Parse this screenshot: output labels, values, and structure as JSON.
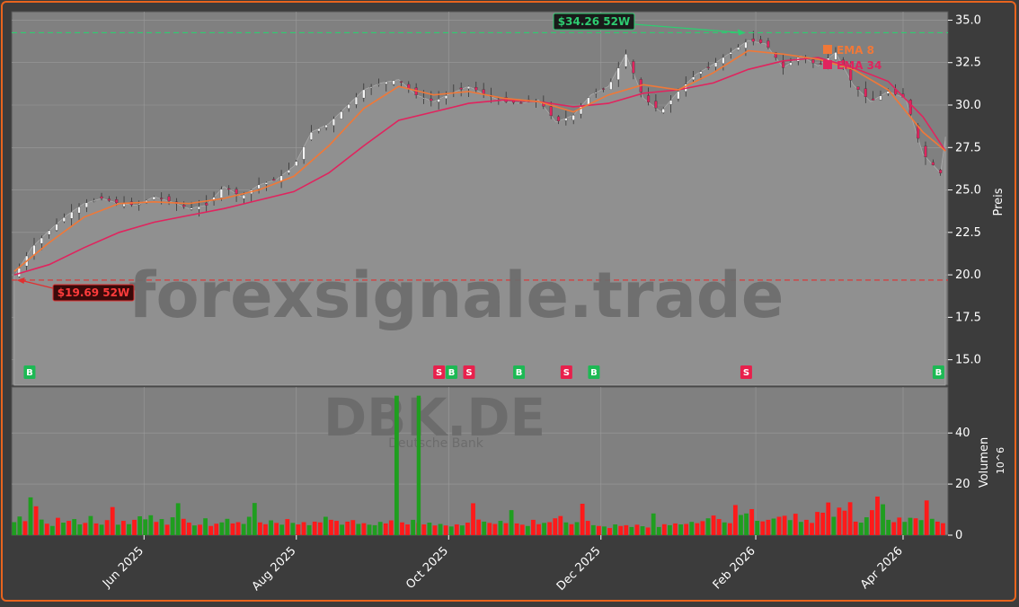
{
  "ticker": "DBK.DE",
  "company": "Deutsche Bank",
  "watermark": "forexsignale.trade",
  "colors": {
    "background": "#3c3c3c",
    "panel": "#808080",
    "frame": "#e8641e",
    "up": "#1f9e1f",
    "down": "#ff1a1a",
    "ema8": "#f07838",
    "ema34": "#e0245e",
    "high_line": "#2ecc71",
    "low_line": "#e03030",
    "buy": "#1db954",
    "sell": "#e8204c"
  },
  "chart_data": [
    {
      "type": "line",
      "panel": "price",
      "ylabel": "Preis",
      "ylim": [
        13.5,
        35.5
      ],
      "yticks": [
        15.0,
        17.5,
        20.0,
        22.5,
        25.0,
        27.5,
        30.0,
        32.5,
        35.0
      ],
      "ytick_labels": [
        "15.0",
        "17.5",
        "20.0",
        "22.5",
        "25.0",
        "27.5",
        "30.0",
        "32.5",
        "35.0"
      ],
      "x_range": [
        "2025-04-09",
        "2026-04-19"
      ],
      "x_ticks": [
        "2025-06-01",
        "2025-08-01",
        "2025-10-01",
        "2025-12-01",
        "2026-02-01",
        "2026-04-01"
      ],
      "x_tick_labels": [
        "Jun 2025",
        "Aug 2025",
        "Oct 2025",
        "Dec 2025",
        "Feb 2026",
        "Apr 2026"
      ],
      "grid": true,
      "legend_position": "top-right",
      "close_series": [
        [
          "2025-04-10",
          19.9
        ],
        [
          "2025-04-17",
          21.6
        ],
        [
          "2025-04-24",
          22.6
        ],
        [
          "2025-05-01",
          23.5
        ],
        [
          "2025-05-08",
          24.2
        ],
        [
          "2025-05-15",
          24.5
        ],
        [
          "2025-05-22",
          24.2
        ],
        [
          "2025-05-29",
          24.1
        ],
        [
          "2025-06-05",
          24.6
        ],
        [
          "2025-06-12",
          24.3
        ],
        [
          "2025-06-19",
          23.9
        ],
        [
          "2025-06-26",
          24.1
        ],
        [
          "2025-07-03",
          25.2
        ],
        [
          "2025-07-10",
          24.6
        ],
        [
          "2025-07-17",
          25.3
        ],
        [
          "2025-07-24",
          25.6
        ],
        [
          "2025-07-31",
          26.4
        ],
        [
          "2025-08-07",
          28.4
        ],
        [
          "2025-08-14",
          28.9
        ],
        [
          "2025-08-21",
          29.9
        ],
        [
          "2025-08-28",
          30.9
        ],
        [
          "2025-09-04",
          31.3
        ],
        [
          "2025-09-11",
          31.5
        ],
        [
          "2025-09-18",
          30.6
        ],
        [
          "2025-09-25",
          30.2
        ],
        [
          "2025-10-02",
          30.7
        ],
        [
          "2025-10-09",
          31.1
        ],
        [
          "2025-10-16",
          30.6
        ],
        [
          "2025-10-23",
          30.2
        ],
        [
          "2025-10-30",
          30.1
        ],
        [
          "2025-11-06",
          30.3
        ],
        [
          "2025-11-13",
          29.0
        ],
        [
          "2025-11-20",
          29.4
        ],
        [
          "2025-11-27",
          30.6
        ],
        [
          "2025-12-04",
          31.1
        ],
        [
          "2025-12-11",
          33.0
        ],
        [
          "2025-12-18",
          30.4
        ],
        [
          "2025-12-25",
          29.6
        ],
        [
          "2026-01-01",
          30.8
        ],
        [
          "2026-01-08",
          31.8
        ],
        [
          "2026-01-15",
          32.4
        ],
        [
          "2026-01-22",
          33.1
        ],
        [
          "2026-01-29",
          33.8
        ],
        [
          "2026-02-05",
          33.6
        ],
        [
          "2026-02-12",
          32.2
        ],
        [
          "2026-02-19",
          32.9
        ],
        [
          "2026-02-26",
          32.3
        ],
        [
          "2026-03-05",
          33.1
        ],
        [
          "2026-03-12",
          31.2
        ],
        [
          "2026-03-19",
          30.2
        ],
        [
          "2026-03-26",
          30.8
        ],
        [
          "2026-04-02",
          30.4
        ],
        [
          "2026-04-09",
          27.1
        ],
        [
          "2026-04-16",
          26.0
        ]
      ],
      "ema8": [
        [
          "2025-04-10",
          20.2
        ],
        [
          "2025-04-24",
          21.9
        ],
        [
          "2025-05-08",
          23.4
        ],
        [
          "2025-05-22",
          24.2
        ],
        [
          "2025-06-05",
          24.3
        ],
        [
          "2025-06-19",
          24.2
        ],
        [
          "2025-07-03",
          24.5
        ],
        [
          "2025-07-17",
          25.0
        ],
        [
          "2025-07-31",
          25.8
        ],
        [
          "2025-08-14",
          27.6
        ],
        [
          "2025-08-28",
          29.8
        ],
        [
          "2025-09-11",
          31.1
        ],
        [
          "2025-09-25",
          30.6
        ],
        [
          "2025-10-09",
          30.8
        ],
        [
          "2025-10-23",
          30.4
        ],
        [
          "2025-11-06",
          30.2
        ],
        [
          "2025-11-20",
          29.6
        ],
        [
          "2025-12-04",
          30.6
        ],
        [
          "2025-12-18",
          31.2
        ],
        [
          "2026-01-01",
          30.9
        ],
        [
          "2026-01-15",
          31.9
        ],
        [
          "2026-01-29",
          33.2
        ],
        [
          "2026-02-12",
          33.0
        ],
        [
          "2026-02-26",
          32.7
        ],
        [
          "2026-03-12",
          32.1
        ],
        [
          "2026-03-26",
          30.9
        ],
        [
          "2026-04-09",
          28.4
        ],
        [
          "2026-04-18",
          27.3
        ]
      ],
      "ema34": [
        [
          "2025-04-10",
          20.0
        ],
        [
          "2025-04-24",
          20.6
        ],
        [
          "2025-05-08",
          21.6
        ],
        [
          "2025-05-22",
          22.5
        ],
        [
          "2025-06-05",
          23.1
        ],
        [
          "2025-06-19",
          23.5
        ],
        [
          "2025-07-03",
          23.9
        ],
        [
          "2025-07-17",
          24.4
        ],
        [
          "2025-07-31",
          24.9
        ],
        [
          "2025-08-14",
          26.0
        ],
        [
          "2025-08-28",
          27.6
        ],
        [
          "2025-09-11",
          29.1
        ],
        [
          "2025-09-25",
          29.6
        ],
        [
          "2025-10-09",
          30.1
        ],
        [
          "2025-10-23",
          30.3
        ],
        [
          "2025-11-06",
          30.2
        ],
        [
          "2025-11-20",
          29.9
        ],
        [
          "2025-12-04",
          30.1
        ],
        [
          "2025-12-18",
          30.7
        ],
        [
          "2026-01-01",
          30.9
        ],
        [
          "2026-01-15",
          31.3
        ],
        [
          "2026-01-29",
          32.1
        ],
        [
          "2026-02-12",
          32.6
        ],
        [
          "2026-02-26",
          32.8
        ],
        [
          "2026-03-12",
          32.2
        ],
        [
          "2026-03-26",
          31.4
        ],
        [
          "2026-04-09",
          29.3
        ],
        [
          "2026-04-18",
          27.3
        ]
      ],
      "legend": [
        {
          "name": "EMA 8",
          "color": "#f07838"
        },
        {
          "name": "EMA 34",
          "color": "#e0245e"
        }
      ],
      "reference_lines": [
        {
          "label": "$34.26 52W",
          "value": 34.26,
          "date": "2026-01-28",
          "kind": "high"
        },
        {
          "label": "$19.69 52W",
          "value": 19.69,
          "date": "2025-04-11",
          "kind": "low"
        }
      ],
      "signals": [
        {
          "date": "2025-04-16",
          "label": "B"
        },
        {
          "date": "2025-09-27",
          "label": "S"
        },
        {
          "date": "2025-10-02",
          "label": "B"
        },
        {
          "date": "2025-10-09",
          "label": "S"
        },
        {
          "date": "2025-10-29",
          "label": "B"
        },
        {
          "date": "2025-11-17",
          "label": "S"
        },
        {
          "date": "2025-11-28",
          "label": "B"
        },
        {
          "date": "2026-01-28",
          "label": "S"
        },
        {
          "date": "2026-04-15",
          "label": "B"
        }
      ],
      "last_value": 28.1
    },
    {
      "type": "bar",
      "panel": "volume",
      "ylabel": "Volumen",
      "unit": "10^6",
      "ylim": [
        0,
        58
      ],
      "yticks": [
        0,
        20,
        40
      ],
      "ytick_labels": [
        "0",
        "20",
        "40"
      ],
      "spike": {
        "date": "2025-09-19",
        "value": 54.6
      },
      "volumes": [
        5.1,
        7.3,
        5.5,
        14.8,
        11.3,
        6.1,
        4.5,
        3.6,
        6.8,
        4.9,
        5.6,
        6.3,
        4.2,
        4.8,
        7.5,
        4.6,
        4.1,
        5.9,
        11.0,
        4.1,
        5.6,
        4.3,
        6.0,
        7.4,
        6.2,
        7.8,
        5.2,
        6.3,
        4.1,
        7.0,
        12.5,
        6.4,
        4.9,
        3.8,
        4.1,
        6.6,
        3.6,
        4.5,
        5.0,
        6.4,
        4.6,
        5.1,
        4.4,
        7.2,
        12.6,
        5.0,
        4.3,
        5.8,
        4.8,
        4.1,
        6.3,
        4.8,
        4.2,
        5.1,
        3.9,
        5.3,
        5.0,
        7.2,
        6.0,
        5.6,
        4.1,
        5.3,
        5.9,
        4.4,
        4.7,
        4.1,
        3.9,
        5.2,
        4.6,
        5.8,
        54.6,
        5.0,
        4.2,
        6.0,
        4.8,
        4.2,
        4.9,
        3.8,
        4.4,
        3.8,
        3.4,
        4.2,
        3.8,
        4.9,
        12.5,
        6.1,
        5.3,
        4.8,
        4.4,
        5.6,
        4.7,
        9.8,
        4.6,
        4.1,
        3.6,
        6.0,
        4.3,
        4.8,
        5.1,
        6.6,
        7.5,
        5.0,
        4.3,
        5.1,
        12.3,
        5.6,
        3.9,
        3.6,
        3.4,
        2.8,
        4.2,
        3.6,
        3.9,
        3.2,
        4.1,
        3.5,
        3.0,
        8.5,
        3.2,
        4.3,
        3.9,
        4.6,
        4.2,
        4.4,
        5.2,
        4.7,
        5.5,
        6.6,
        7.7,
        6.3,
        5.0,
        4.7,
        11.8,
        7.9,
        8.5,
        10.2,
        5.6,
        5.4,
        6.0,
        6.5,
        7.2,
        7.6,
        5.9,
        8.4,
        5.2,
        6.0,
        4.8,
        9.1,
        8.8,
        12.8,
        7.2,
        10.8,
        9.6,
        12.9,
        5.3,
        4.9,
        7.0,
        9.8,
        15.1,
        12.1,
        6.0,
        5.1,
        6.9,
        5.2,
        6.8,
        6.6,
        5.9,
        13.6,
        6.4,
        5.3,
        4.7
      ],
      "volume_up": [
        1,
        1,
        0,
        1,
        0,
        1,
        0,
        1,
        0,
        1,
        0,
        1,
        1,
        0,
        1,
        0,
        1,
        0,
        0,
        1,
        0,
        1,
        0,
        1,
        1,
        1,
        0,
        1,
        0,
        1,
        1,
        0,
        0,
        1,
        0,
        1,
        0,
        0,
        1,
        1,
        0,
        0,
        1,
        1,
        1,
        0,
        0,
        1,
        0,
        1,
        0,
        1,
        0,
        0,
        1,
        0,
        0,
        1,
        0,
        0,
        1,
        0,
        0,
        1,
        0,
        1,
        1,
        1,
        0,
        0,
        1,
        0,
        0,
        1,
        0,
        0,
        1,
        0,
        1,
        0,
        1,
        0,
        1,
        0,
        0,
        0,
        1,
        0,
        0,
        1,
        0,
        1,
        0,
        0,
        1,
        0,
        0,
        1,
        0,
        0,
        0,
        1,
        0,
        1,
        0,
        0,
        1,
        0,
        1,
        0,
        1,
        0,
        0,
        1,
        0,
        1,
        0,
        1,
        1,
        0,
        1,
        0,
        1,
        0,
        1,
        0,
        0,
        1,
        0,
        0,
        1,
        0,
        0,
        1,
        1,
        0,
        1,
        0,
        0,
        1,
        0,
        0,
        1,
        0,
        1,
        0,
        0,
        0,
        0,
        0,
        1,
        0,
        0,
        0,
        0,
        1,
        1,
        0,
        0,
        1,
        1,
        0,
        0,
        1,
        1,
        0,
        1,
        0,
        1,
        0,
        0
      ]
    }
  ]
}
